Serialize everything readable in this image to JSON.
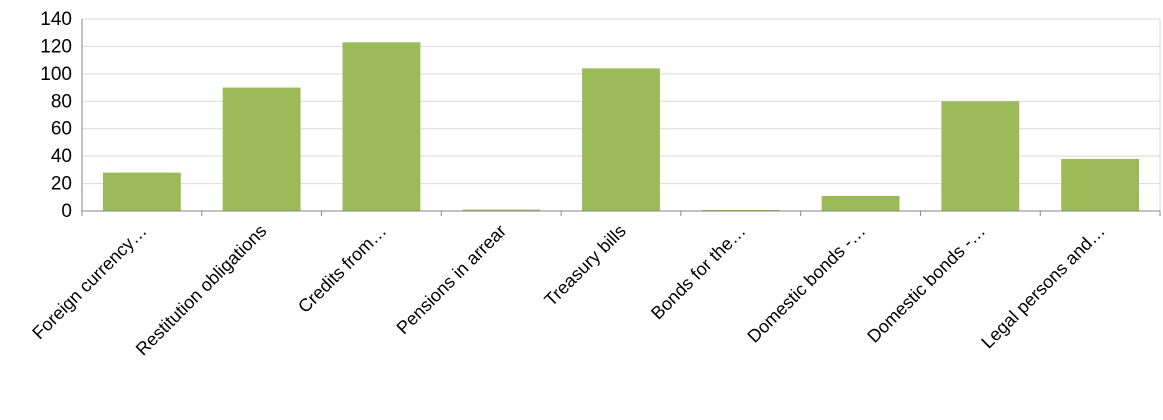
{
  "chart_data": {
    "type": "bar",
    "title": "",
    "xlabel": "",
    "ylabel": "",
    "categories": [
      "Foreign currency…",
      "Restitution obligations",
      "Credits from…",
      "Pensions in arrear",
      "Treasury bills",
      "Bonds for the…",
      "Domestic bonds -…",
      "Domestic bonds -…",
      "Legal persons and…"
    ],
    "values": [
      28,
      90,
      123,
      1,
      104,
      0.5,
      11,
      80,
      38
    ],
    "ylim": [
      0,
      140
    ],
    "yticks": [
      0,
      20,
      40,
      60,
      80,
      100,
      120,
      140
    ],
    "grid": true,
    "legend": "none",
    "bar_color": "#9bbb59"
  }
}
